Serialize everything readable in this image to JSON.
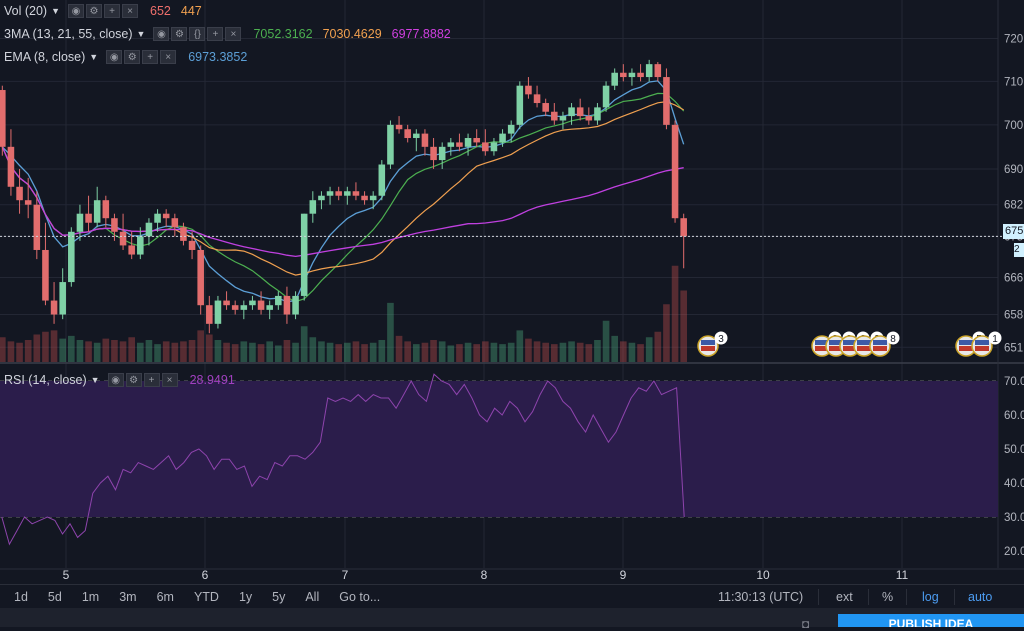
{
  "legend": {
    "vol": {
      "label": "Vol (20)",
      "value1": "652",
      "value2": "447"
    },
    "sma3": {
      "label": "3MA (13, 21, 55, close)",
      "v1": "7052.3162",
      "v2": "7030.4629",
      "v3": "6977.8882"
    },
    "ema": {
      "label": "EMA (8, close)",
      "value": "6973.3852"
    },
    "rsi": {
      "label": "RSI (14, close)",
      "value": "28.9491"
    }
  },
  "price_axis": {
    "labels": [
      "720",
      "710",
      "700",
      "690",
      "682",
      "675",
      "666",
      "658",
      "651"
    ],
    "current_tag": "675",
    "current_tag2": "2"
  },
  "rsi_axis": {
    "labels": [
      "70.0",
      "60.0",
      "50.0",
      "40.0",
      "30.0",
      "20.0"
    ]
  },
  "time_axis": {
    "labels": [
      "5",
      "6",
      "7",
      "8",
      "9",
      "10",
      "11"
    ]
  },
  "event_badges": [
    "3",
    "8",
    "2",
    "2",
    "2",
    "8",
    "5",
    "1"
  ],
  "bottom_bar": {
    "ranges": [
      "1d",
      "5d",
      "1m",
      "3m",
      "6m",
      "YTD",
      "1y",
      "5y",
      "All"
    ],
    "goto": "Go to...",
    "clock": "11:30:13 (UTC)",
    "options": [
      "ext",
      "%",
      "log",
      "auto"
    ],
    "active_options": [
      "log",
      "auto"
    ]
  },
  "footer": {
    "publish_label": "PUBLISH IDEA"
  },
  "colors": {
    "background": "#131722",
    "rsi_band": "#2b1d4b",
    "up": "#7fd1a6",
    "down": "#e26d6d",
    "sma13": "#5c9fd6",
    "sma21": "#4caf50",
    "sma55": "#f0a050",
    "ema8": "#c040e0",
    "rsi_line": "#8e44ad",
    "accent": "#2196f3"
  },
  "chart_data": [
    {
      "type": "candlestick",
      "title": "",
      "scale": "log",
      "ylim": [
        6500,
        7220
      ],
      "x_ticks": [
        "5",
        "6",
        "7",
        "8",
        "9",
        "10",
        "11"
      ],
      "ohlc": [
        [
          7080,
          7090,
          6930,
          6950
        ],
        [
          6950,
          6990,
          6840,
          6860
        ],
        [
          6860,
          6900,
          6800,
          6830
        ],
        [
          6830,
          6880,
          6790,
          6820
        ],
        [
          6820,
          6850,
          6700,
          6720
        ],
        [
          6720,
          6780,
          6600,
          6610
        ],
        [
          6610,
          6650,
          6560,
          6580
        ],
        [
          6580,
          6680,
          6570,
          6650
        ],
        [
          6650,
          6770,
          6640,
          6760
        ],
        [
          6760,
          6820,
          6740,
          6800
        ],
        [
          6800,
          6840,
          6760,
          6780
        ],
        [
          6780,
          6860,
          6770,
          6830
        ],
        [
          6830,
          6840,
          6770,
          6790
        ],
        [
          6790,
          6800,
          6740,
          6760
        ],
        [
          6760,
          6800,
          6720,
          6730
        ],
        [
          6730,
          6760,
          6700,
          6710
        ],
        [
          6710,
          6770,
          6700,
          6750
        ],
        [
          6750,
          6790,
          6730,
          6780
        ],
        [
          6780,
          6810,
          6760,
          6800
        ],
        [
          6800,
          6810,
          6770,
          6790
        ],
        [
          6790,
          6800,
          6750,
          6770
        ],
        [
          6770,
          6780,
          6730,
          6740
        ],
        [
          6740,
          6760,
          6700,
          6720
        ],
        [
          6720,
          6730,
          6580,
          6600
        ],
        [
          6600,
          6620,
          6540,
          6560
        ],
        [
          6560,
          6620,
          6550,
          6610
        ],
        [
          6610,
          6630,
          6590,
          6600
        ],
        [
          6600,
          6610,
          6580,
          6590
        ],
        [
          6590,
          6610,
          6570,
          6600
        ],
        [
          6600,
          6620,
          6590,
          6610
        ],
        [
          6610,
          6630,
          6580,
          6590
        ],
        [
          6590,
          6610,
          6570,
          6600
        ],
        [
          6600,
          6630,
          6590,
          6620
        ],
        [
          6620,
          6640,
          6560,
          6580
        ],
        [
          6580,
          6630,
          6570,
          6620
        ],
        [
          6620,
          6800,
          6610,
          6800
        ],
        [
          6800,
          6850,
          6780,
          6830
        ],
        [
          6830,
          6850,
          6810,
          6840
        ],
        [
          6840,
          6860,
          6820,
          6850
        ],
        [
          6850,
          6860,
          6830,
          6840
        ],
        [
          6840,
          6860,
          6820,
          6850
        ],
        [
          6850,
          6870,
          6830,
          6840
        ],
        [
          6840,
          6850,
          6820,
          6830
        ],
        [
          6830,
          6850,
          6810,
          6840
        ],
        [
          6840,
          6920,
          6830,
          6910
        ],
        [
          6910,
          7010,
          6900,
          7000
        ],
        [
          7000,
          7020,
          6980,
          6990
        ],
        [
          6990,
          7000,
          6960,
          6970
        ],
        [
          6970,
          6990,
          6940,
          6980
        ],
        [
          6980,
          6990,
          6930,
          6950
        ],
        [
          6950,
          6970,
          6900,
          6920
        ],
        [
          6920,
          6960,
          6900,
          6950
        ],
        [
          6950,
          6970,
          6930,
          6960
        ],
        [
          6960,
          6980,
          6940,
          6950
        ],
        [
          6950,
          6980,
          6930,
          6970
        ],
        [
          6970,
          6990,
          6950,
          6960
        ],
        [
          6960,
          6990,
          6930,
          6940
        ],
        [
          6940,
          6970,
          6930,
          6960
        ],
        [
          6960,
          6990,
          6950,
          6980
        ],
        [
          6980,
          7010,
          6960,
          7000
        ],
        [
          7000,
          7100,
          6990,
          7090
        ],
        [
          7090,
          7110,
          7060,
          7070
        ],
        [
          7070,
          7090,
          7040,
          7050
        ],
        [
          7050,
          7060,
          7020,
          7030
        ],
        [
          7030,
          7050,
          7000,
          7010
        ],
        [
          7010,
          7030,
          6990,
          7020
        ],
        [
          7020,
          7050,
          7000,
          7040
        ],
        [
          7040,
          7060,
          7010,
          7020
        ],
        [
          7020,
          7040,
          7000,
          7010
        ],
        [
          7010,
          7050,
          7000,
          7040
        ],
        [
          7040,
          7100,
          7030,
          7090
        ],
        [
          7090,
          7130,
          7080,
          7120
        ],
        [
          7120,
          7140,
          7100,
          7110
        ],
        [
          7110,
          7130,
          7090,
          7120
        ],
        [
          7120,
          7140,
          7100,
          7110
        ],
        [
          7110,
          7150,
          7100,
          7140
        ],
        [
          7140,
          7145,
          7100,
          7110
        ],
        [
          7110,
          7130,
          6990,
          7000
        ],
        [
          7000,
          7010,
          6780,
          6790
        ],
        [
          6790,
          6800,
          6680,
          6750
        ]
      ],
      "volume": [
        180,
        150,
        140,
        160,
        200,
        220,
        230,
        170,
        190,
        160,
        150,
        140,
        170,
        160,
        150,
        180,
        140,
        160,
        130,
        150,
        140,
        150,
        160,
        230,
        200,
        160,
        140,
        130,
        150,
        140,
        130,
        150,
        120,
        160,
        140,
        260,
        180,
        150,
        140,
        130,
        140,
        150,
        130,
        140,
        160,
        430,
        190,
        150,
        130,
        140,
        160,
        150,
        120,
        130,
        140,
        130,
        150,
        140,
        130,
        140,
        230,
        170,
        150,
        140,
        130,
        140,
        150,
        140,
        130,
        160,
        300,
        190,
        150,
        140,
        130,
        180,
        220,
        420,
        700,
        520
      ]
    },
    {
      "type": "line",
      "title": "",
      "name": "RSI (14, close)",
      "ylim": [
        15,
        75
      ],
      "y_ticks": [
        70,
        60,
        50,
        40,
        30,
        20
      ],
      "values": [
        30,
        22,
        26,
        30,
        28,
        29,
        30,
        29,
        25,
        28,
        24,
        26,
        37,
        40,
        42,
        38,
        44,
        43,
        46,
        45,
        44,
        46,
        48,
        44,
        46,
        49,
        50,
        48,
        44,
        47,
        47,
        44,
        45,
        39,
        42,
        41,
        46,
        45,
        48,
        48,
        47,
        49,
        52,
        65,
        64,
        65,
        64,
        66,
        64,
        66,
        65,
        65,
        62,
        66,
        70,
        66,
        64,
        72,
        70,
        69,
        66,
        69,
        65,
        60,
        58,
        62,
        60,
        64,
        62,
        58,
        61,
        66,
        70,
        68,
        64,
        62,
        58,
        55,
        60,
        56,
        52,
        55,
        60,
        65,
        68,
        67,
        70,
        66,
        67,
        68,
        30
      ]
    }
  ]
}
